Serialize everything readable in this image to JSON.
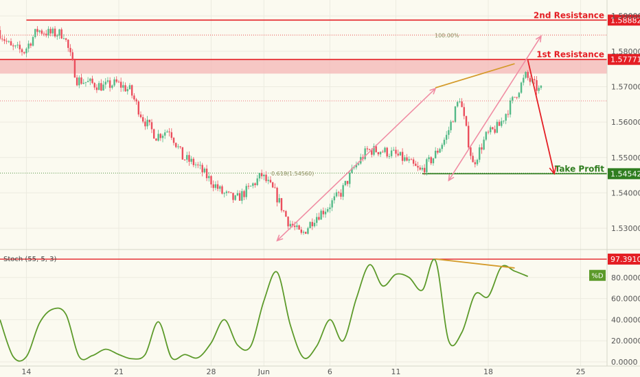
{
  "colors": {
    "background": "#fbfaf0",
    "grid": "#ecebe0",
    "up_candle": "#53b987",
    "down_candle": "#eb4d5c",
    "resistance": "#e41e24",
    "resistance_zone": "#f4b6b6",
    "support": "#2f7d1f",
    "trend_arrow": "#f08ca3",
    "divergence": "#d49a29",
    "stoch_line": "#5c9a2a",
    "projection_arrow": "#e41e24",
    "axis_text": "#555555"
  },
  "chart_data": [
    {
      "type": "candlestick",
      "ylim": [
        1.524,
        1.5945
      ],
      "y_ticks": [
        1.53,
        1.54,
        1.55,
        1.56,
        1.57,
        1.58,
        1.59
      ],
      "y_tick_labels": [
        "1.53000",
        "1.54000",
        "1.55000",
        "1.56000",
        "1.57000",
        "1.58000",
        "1.59000"
      ],
      "x_range_days": [
        "2018-05-12",
        "2018-06-27"
      ],
      "x_ticks": [
        {
          "date": "2018-05-14",
          "label": "14"
        },
        {
          "date": "2018-05-21",
          "label": "21"
        },
        {
          "date": "2018-05-28",
          "label": "28"
        },
        {
          "date": "2018-06-01",
          "label": "Jun"
        },
        {
          "date": "2018-06-06",
          "label": "6"
        },
        {
          "date": "2018-06-11",
          "label": "11"
        },
        {
          "date": "2018-06-18",
          "label": "18"
        },
        {
          "date": "2018-06-25",
          "label": "25"
        }
      ],
      "close_path": [
        [
          "2018-05-12",
          1.586
        ],
        [
          "2018-05-13",
          1.581
        ],
        [
          "2018-05-14",
          1.58
        ],
        [
          "2018-05-15",
          1.586
        ],
        [
          "2018-05-16",
          1.585
        ],
        [
          "2018-05-17",
          1.585
        ],
        [
          "2018-05-18",
          1.572
        ],
        [
          "2018-05-19",
          1.571
        ],
        [
          "2018-05-20",
          1.57
        ],
        [
          "2018-05-21",
          1.571
        ],
        [
          "2018-05-22",
          1.569
        ],
        [
          "2018-05-23",
          1.561
        ],
        [
          "2018-05-24",
          1.556
        ],
        [
          "2018-05-25",
          1.558
        ],
        [
          "2018-05-26",
          1.55
        ],
        [
          "2018-05-27",
          1.548
        ],
        [
          "2018-05-28",
          1.544
        ],
        [
          "2018-05-29",
          1.54
        ],
        [
          "2018-05-30",
          1.538
        ],
        [
          "2018-05-31",
          1.541
        ],
        [
          "2018-06-01",
          1.545
        ],
        [
          "2018-06-02",
          1.54
        ],
        [
          "2018-06-03",
          1.532
        ],
        [
          "2018-06-04",
          1.528
        ],
        [
          "2018-06-05",
          1.533
        ],
        [
          "2018-06-06",
          1.536
        ],
        [
          "2018-06-07",
          1.54
        ],
        [
          "2018-06-08",
          1.547
        ],
        [
          "2018-06-09",
          1.552
        ],
        [
          "2018-06-10",
          1.552
        ],
        [
          "2018-06-11",
          1.551
        ],
        [
          "2018-06-12",
          1.549
        ],
        [
          "2018-06-13",
          1.546
        ],
        [
          "2018-06-14",
          1.55
        ],
        [
          "2018-06-15",
          1.556
        ],
        [
          "2018-06-16",
          1.567
        ],
        [
          "2018-06-17",
          1.548
        ],
        [
          "2018-06-18",
          1.556
        ],
        [
          "2018-06-19",
          1.559
        ],
        [
          "2018-06-20",
          1.566
        ],
        [
          "2018-06-21",
          1.573
        ],
        [
          "2018-06-22",
          1.569
        ]
      ],
      "horizontal_levels": [
        {
          "name": "2nd Resistance",
          "label": "2nd Resistance",
          "value": 1.58882,
          "value_label": "1.58882",
          "color": "#e41e24"
        },
        {
          "name": "1st Resistance",
          "label": "1st Resistance",
          "value": 1.57771,
          "value_label": "1.57771",
          "color": "#e41e24"
        },
        {
          "name": "Take Profit",
          "label": "Take Profit",
          "value": 1.54542,
          "value_label": "1.54542",
          "color": "#2f7d1f"
        }
      ],
      "resistance_zone": [
        1.5737,
        1.57771
      ],
      "dotted_levels": [
        {
          "value": 1.5846,
          "label": "100.00%"
        },
        {
          "value": 1.5456,
          "label": "0.618(1.54560)"
        },
        {
          "value": 1.566,
          "label": ""
        }
      ],
      "annotations": [
        {
          "kind": "trend-arrow",
          "from": [
            "2018-06-02",
            1.5265
          ],
          "to": [
            "2018-06-14",
            1.5695
          ]
        },
        {
          "kind": "trend-arrow",
          "from": [
            "2018-06-15",
            1.5435
          ],
          "to": [
            "2018-06-22",
            1.5843
          ]
        },
        {
          "kind": "divergence-line",
          "from": [
            "2018-06-14",
            1.5697
          ],
          "to": [
            "2018-06-20",
            1.5765
          ]
        },
        {
          "kind": "projection-arrow",
          "from": [
            "2018-06-21",
            1.5775
          ],
          "to": [
            "2018-06-23",
            1.5454
          ]
        }
      ]
    },
    {
      "type": "line",
      "title": "Stoch (55, 5, 3)",
      "legend": "%D",
      "ylim": [
        0,
        100
      ],
      "y_ticks": [
        0,
        20,
        40,
        60,
        80
      ],
      "y_tick_labels": [
        "0.0000",
        "20.0000",
        "40.0000",
        "60.0000",
        "80.0000"
      ],
      "reference_level": {
        "value": 97.391,
        "label": "97.3910"
      },
      "last_value_label": "%D",
      "divergence_line": {
        "from": [
          "2018-06-14",
          97.5
        ],
        "to": [
          "2018-06-20",
          89
        ]
      },
      "series": [
        {
          "values": [
            [
              "2018-05-12",
              40
            ],
            [
              "2018-05-13",
              5
            ],
            [
              "2018-05-14",
              5
            ],
            [
              "2018-05-15",
              37
            ],
            [
              "2018-05-16",
              50
            ],
            [
              "2018-05-17",
              45
            ],
            [
              "2018-05-18",
              5
            ],
            [
              "2018-05-19",
              6
            ],
            [
              "2018-05-20",
              12
            ],
            [
              "2018-05-21",
              7
            ],
            [
              "2018-05-22",
              3
            ],
            [
              "2018-05-23",
              7
            ],
            [
              "2018-05-24",
              38
            ],
            [
              "2018-05-25",
              4
            ],
            [
              "2018-05-26",
              7
            ],
            [
              "2018-05-27",
              4
            ],
            [
              "2018-05-28",
              18
            ],
            [
              "2018-05-29",
              40
            ],
            [
              "2018-05-30",
              16
            ],
            [
              "2018-05-31",
              15
            ],
            [
              "2018-06-01",
              58
            ],
            [
              "2018-06-02",
              85
            ],
            [
              "2018-06-03",
              35
            ],
            [
              "2018-06-04",
              4
            ],
            [
              "2018-06-05",
              15
            ],
            [
              "2018-06-06",
              40
            ],
            [
              "2018-06-07",
              20
            ],
            [
              "2018-06-08",
              60
            ],
            [
              "2018-06-09",
              92
            ],
            [
              "2018-06-10",
              72
            ],
            [
              "2018-06-11",
              83
            ],
            [
              "2018-06-12",
              80
            ],
            [
              "2018-06-13",
              68
            ],
            [
              "2018-06-14",
              96
            ],
            [
              "2018-06-15",
              20
            ],
            [
              "2018-06-16",
              28
            ],
            [
              "2018-06-17",
              64
            ],
            [
              "2018-06-18",
              62
            ],
            [
              "2018-06-19",
              90
            ],
            [
              "2018-06-20",
              86
            ],
            [
              "2018-06-21",
              81
            ]
          ]
        }
      ]
    }
  ]
}
